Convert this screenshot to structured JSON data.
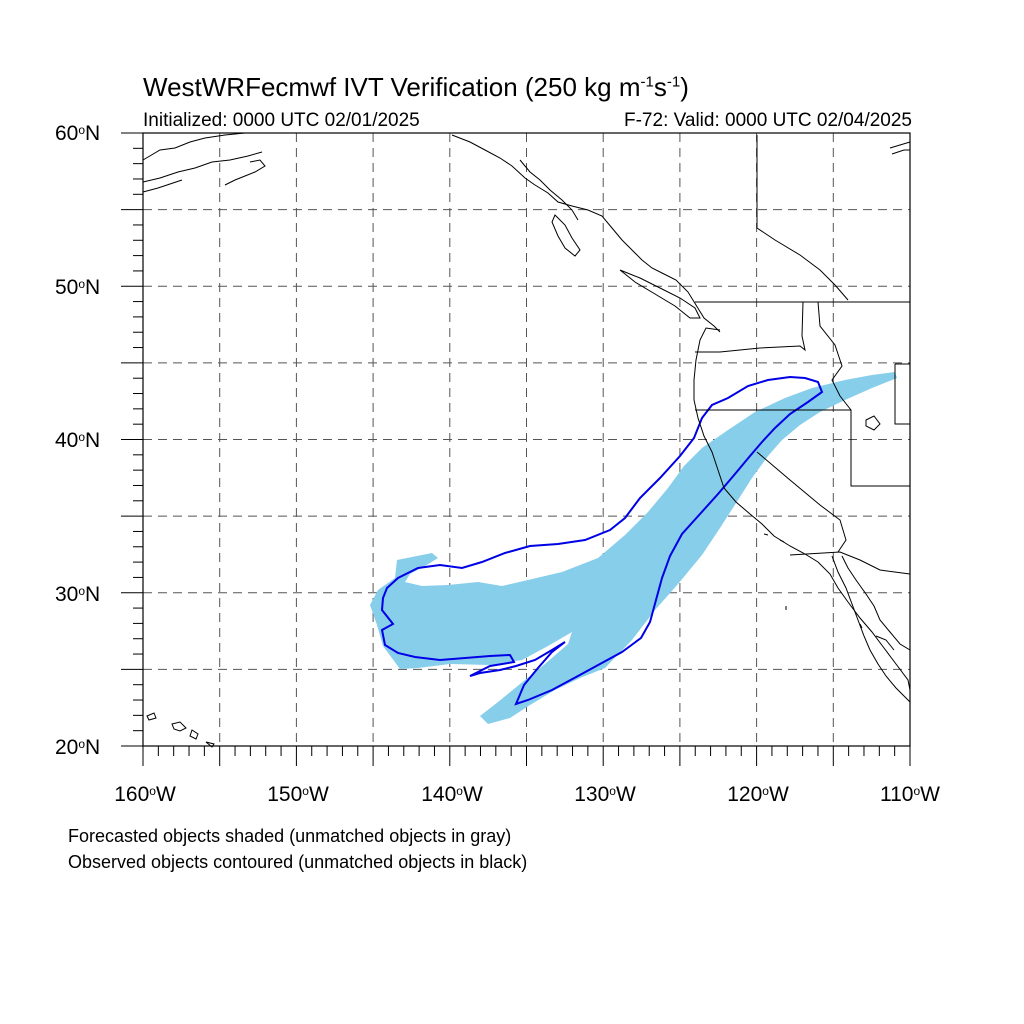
{
  "title": {
    "main": "WestWRFecmwf IVT Verification (250 kg m",
    "exp1": "-1",
    "mid": "s",
    "exp2": "-1",
    "end": ")"
  },
  "initialized": "Initialized: 0000 UTC 02/01/2025",
  "valid": "F-72: Valid: 0000 UTC 02/04/2025",
  "lat_ticks": [
    {
      "value": 60,
      "num": "60",
      "hemi": "N"
    },
    {
      "value": 50,
      "num": "50",
      "hemi": "N"
    },
    {
      "value": 40,
      "num": "40",
      "hemi": "N"
    },
    {
      "value": 30,
      "num": "30",
      "hemi": "N"
    },
    {
      "value": 20,
      "num": "20",
      "hemi": "N"
    }
  ],
  "lon_ticks": [
    {
      "value": -160,
      "num": "160",
      "hemi": "W"
    },
    {
      "value": -150,
      "num": "150",
      "hemi": "W"
    },
    {
      "value": -140,
      "num": "140",
      "hemi": "W"
    },
    {
      "value": -130,
      "num": "130",
      "hemi": "W"
    },
    {
      "value": -120,
      "num": "120",
      "hemi": "W"
    },
    {
      "value": -110,
      "num": "110",
      "hemi": "W"
    }
  ],
  "notes": {
    "line1": "Forecasted objects shaded (unmatched objects in gray)",
    "line2": "Observed objects contoured (unmatched objects in black)"
  },
  "colors": {
    "forecast_fill": "#87ceeb",
    "observed_contour": "#0000e6",
    "coastline": "#000000",
    "grid": "#555555"
  }
}
